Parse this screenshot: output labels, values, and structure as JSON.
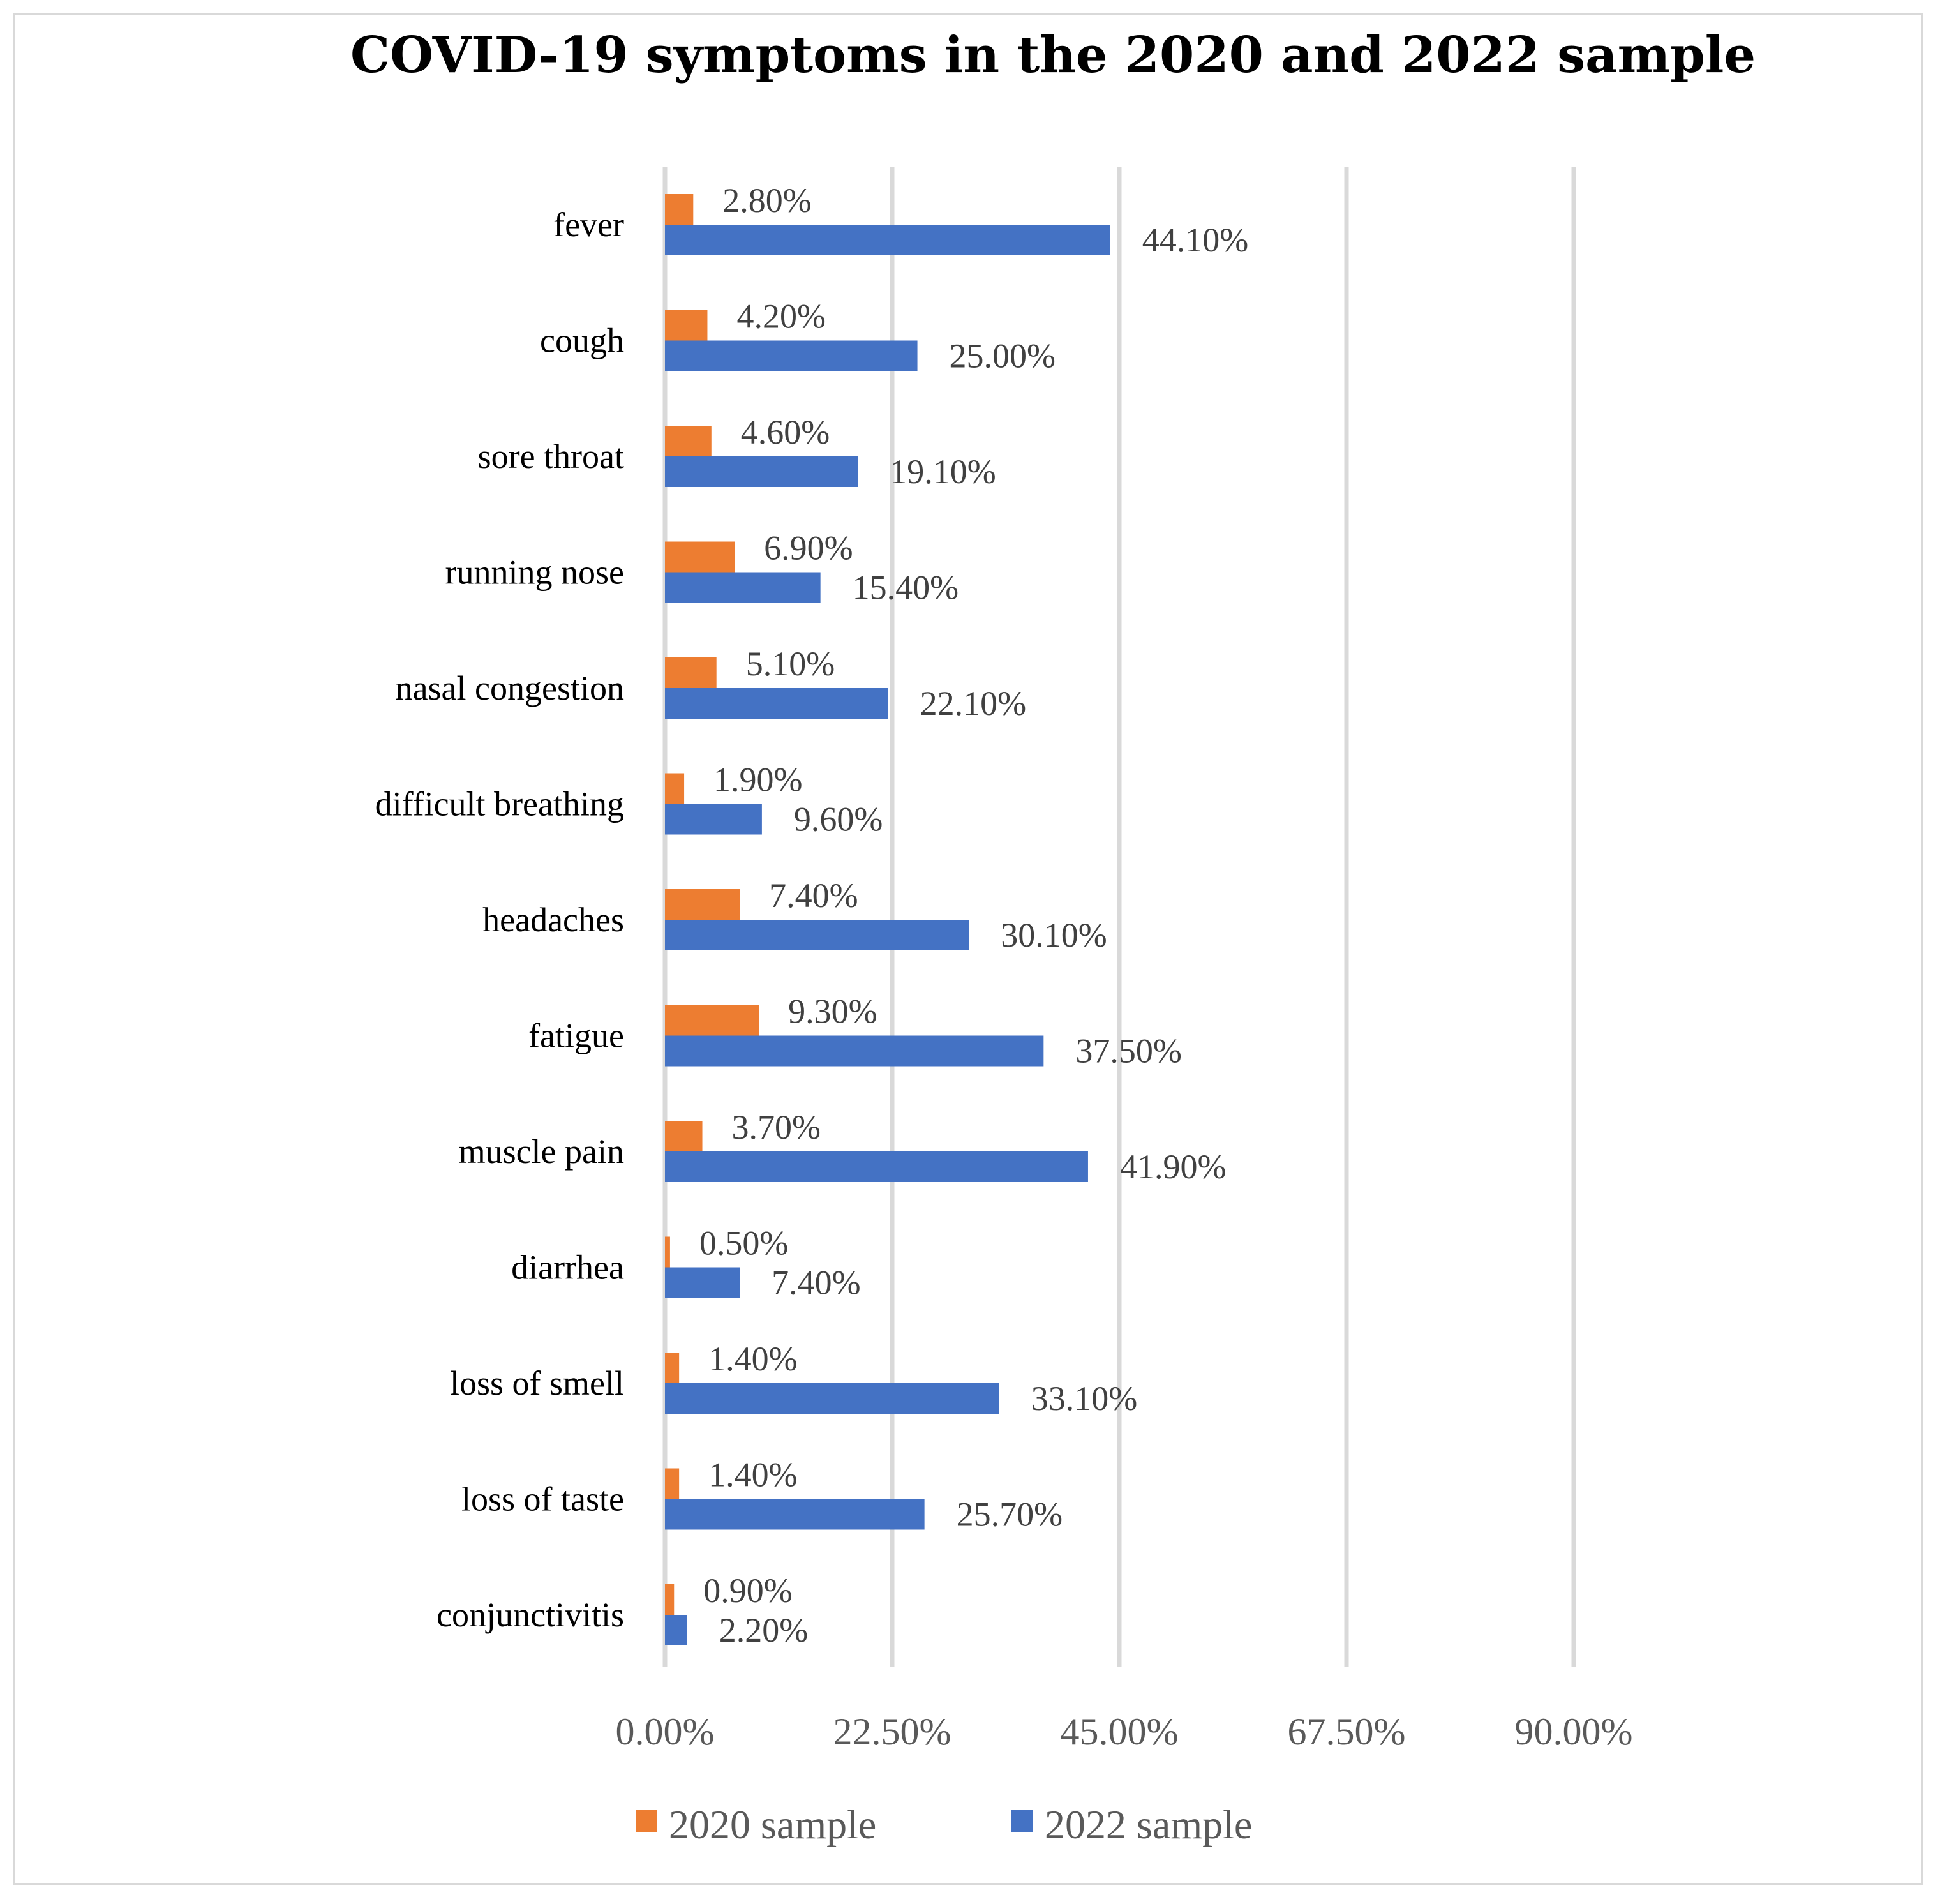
{
  "chart_data": {
    "type": "bar",
    "orientation": "horizontal",
    "title": "COVID-19 symptoms in the 2020 and 2022 sample",
    "categories": [
      "fever",
      "cough",
      "sore throat",
      "running nose",
      "nasal congestion",
      "difficult breathing",
      "headaches",
      "fatigue",
      "muscle pain",
      "diarrhea",
      "loss of smell",
      "loss of taste",
      "conjunctivitis"
    ],
    "series": [
      {
        "name": "2020 sample",
        "color": "#ed7d31",
        "values": [
          2.8,
          4.2,
          4.6,
          6.9,
          5.1,
          1.9,
          7.4,
          9.3,
          3.7,
          0.5,
          1.4,
          1.4,
          0.9
        ],
        "labels": [
          "2.80%",
          "4.20%",
          "4.60%",
          "6.90%",
          "5.10%",
          "1.90%",
          "7.40%",
          "9.30%",
          "3.70%",
          "0.50%",
          "1.40%",
          "1.40%",
          "0.90%"
        ]
      },
      {
        "name": "2022 sample",
        "color": "#4472c4",
        "values": [
          44.1,
          25.0,
          19.1,
          15.4,
          22.1,
          9.6,
          30.1,
          37.5,
          41.9,
          7.4,
          33.1,
          25.7,
          2.2
        ],
        "labels": [
          "44.10%",
          "25.00%",
          "19.10%",
          "15.40%",
          "22.10%",
          "9.60%",
          "30.10%",
          "37.50%",
          "41.90%",
          "7.40%",
          "33.10%",
          "25.70%",
          "2.20%"
        ]
      }
    ],
    "xlim": [
      0,
      90
    ],
    "xticks": [
      0,
      22.5,
      45,
      67.5,
      90
    ],
    "xtick_labels": [
      "0.00%",
      "22.50%",
      "45.00%",
      "67.50%",
      "90.00%"
    ],
    "xlabel": "",
    "ylabel": "",
    "grid": true,
    "legend_position": "bottom",
    "gridline_color": "#d9d9d9"
  }
}
